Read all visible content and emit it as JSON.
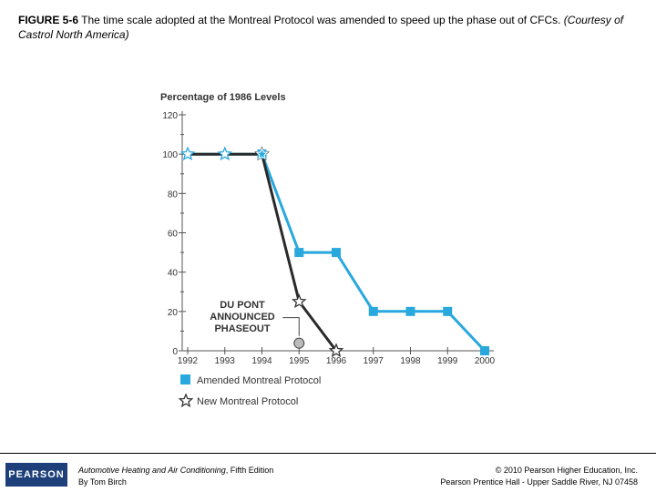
{
  "caption": {
    "figure_label": "FIGURE 5-6",
    "text": " The time scale adopted at the Montreal Protocol was amended to speed up the phase out of CFCs. ",
    "courtesy": "(Courtesy of Castrol North America)"
  },
  "chart_data": {
    "type": "line",
    "title": "Percentage of 1986 Levels",
    "xlabel": "",
    "ylabel": "",
    "categories": [
      "1992",
      "1993",
      "1994",
      "1995",
      "1996",
      "1997",
      "1998",
      "1999",
      "2000"
    ],
    "ylim": [
      0,
      120
    ],
    "yticks": [
      0,
      20,
      40,
      60,
      80,
      100,
      120
    ],
    "grid": false,
    "legend_placement": "bottom-left",
    "series": [
      {
        "name": "Amended Montreal Protocol",
        "color": "#29a8de",
        "marker": "square",
        "points": [
          [
            1992,
            100
          ],
          [
            1993,
            100
          ],
          [
            1994,
            100
          ],
          [
            1995,
            50
          ],
          [
            1996,
            50
          ],
          [
            1997,
            20
          ],
          [
            1998,
            20
          ],
          [
            1999,
            20
          ],
          [
            2000,
            0
          ]
        ]
      },
      {
        "name": "New Montreal Protocol",
        "color": "#2a2a2a",
        "marker": "star",
        "points": [
          [
            1992,
            100
          ],
          [
            1993,
            100
          ],
          [
            1994,
            100
          ],
          [
            1995,
            25
          ],
          [
            1996,
            0
          ]
        ]
      }
    ],
    "annotations": [
      {
        "text": "DU PONT\nANNOUNCED\nPHASEOUT",
        "point": [
          1995,
          2
        ]
      }
    ]
  },
  "footer": {
    "logo": "PEARSON",
    "book_title": "Automotive Heating and Air Conditioning",
    "book_rest": ", Fifth Edition",
    "author": "By Tom Birch",
    "copyright": "© 2010 Pearson Higher Education, Inc.",
    "publisher": "Pearson Prentice Hall - Upper Saddle River, NJ 07458"
  }
}
